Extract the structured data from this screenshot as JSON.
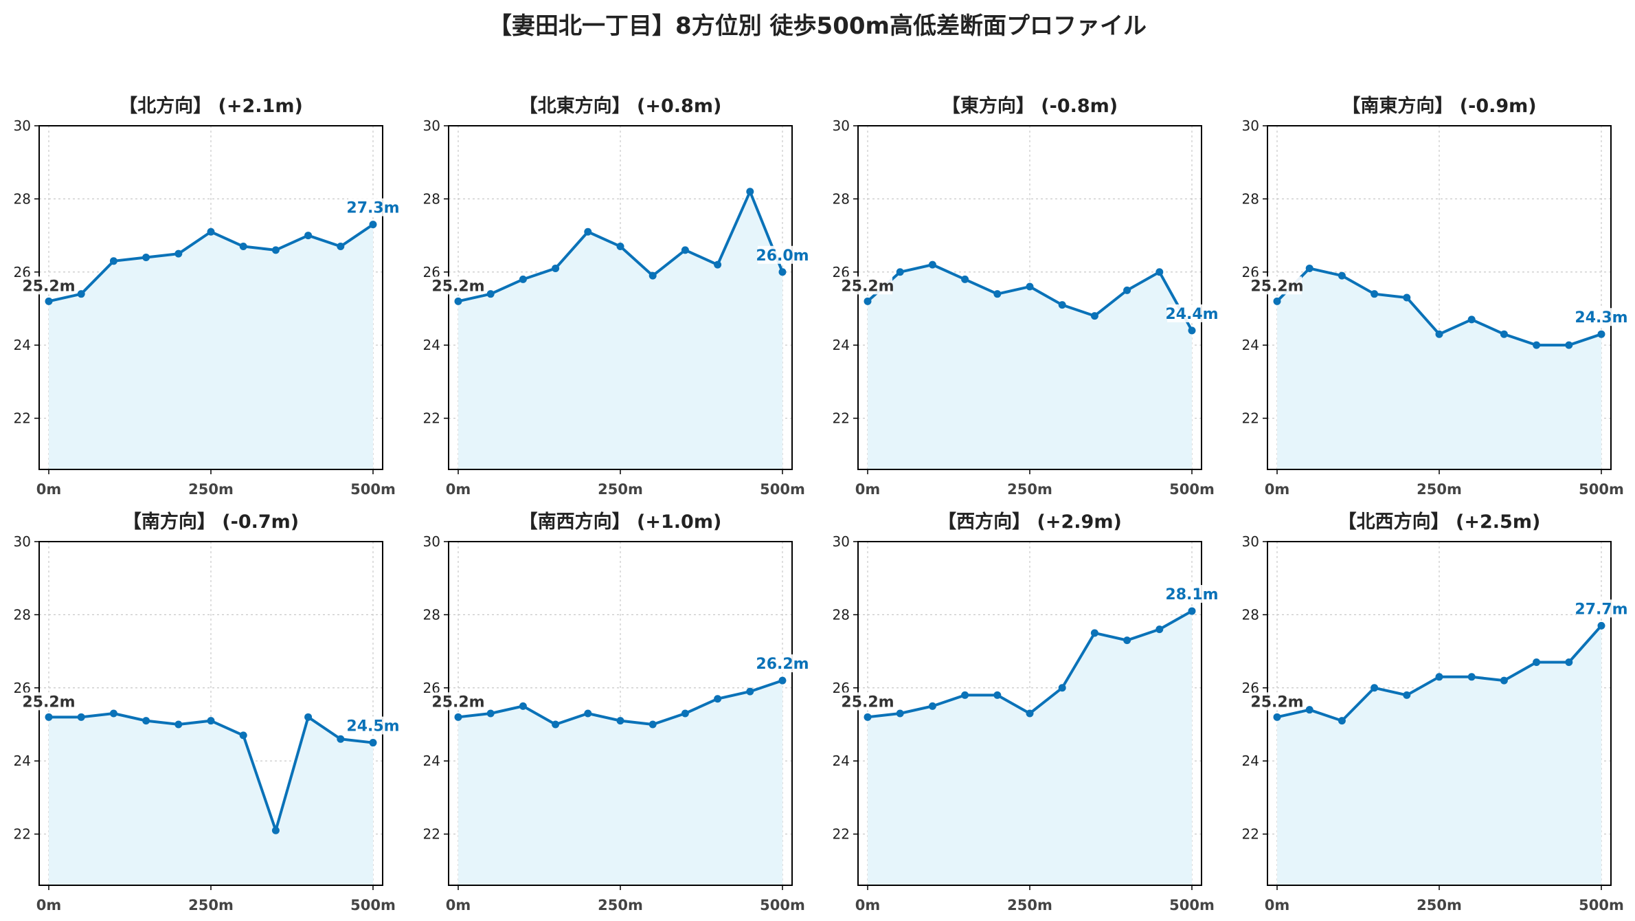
{
  "title": "【妻田北一丁目】8方位別 徒歩500m高低差断面プロファイル",
  "colors": {
    "line": "#0a72b8",
    "fill": "#e6f5fb",
    "start_label": "#333333",
    "end_label": "#0a72b8",
    "grid": "#c8c8c8"
  },
  "chart_data": [
    {
      "type": "area",
      "title": "【北方向】 (+2.1m)",
      "x": [
        0,
        50,
        100,
        150,
        200,
        250,
        300,
        350,
        400,
        450,
        500
      ],
      "y": [
        25.2,
        25.4,
        26.3,
        26.4,
        26.5,
        27.1,
        26.7,
        26.6,
        27.0,
        26.7,
        27.3
      ],
      "xticks": [
        "0m",
        "250m",
        "500m"
      ],
      "yticks": [
        "22",
        "24",
        "26",
        "28",
        "30"
      ],
      "ylim": [
        20.6,
        30
      ],
      "start_label": "25.2m",
      "end_label": "27.3m",
      "grid": true
    },
    {
      "type": "area",
      "title": "【北東方向】 (+0.8m)",
      "x": [
        0,
        50,
        100,
        150,
        200,
        250,
        300,
        350,
        400,
        450,
        500
      ],
      "y": [
        25.2,
        25.4,
        25.8,
        26.1,
        27.1,
        26.7,
        25.9,
        26.6,
        26.2,
        28.2,
        26.0
      ],
      "xticks": [
        "0m",
        "250m",
        "500m"
      ],
      "yticks": [
        "22",
        "24",
        "26",
        "28",
        "30"
      ],
      "ylim": [
        20.6,
        30
      ],
      "start_label": "25.2m",
      "end_label": "26.0m",
      "grid": true
    },
    {
      "type": "area",
      "title": "【東方向】 (-0.8m)",
      "x": [
        0,
        50,
        100,
        150,
        200,
        250,
        300,
        350,
        400,
        450,
        500
      ],
      "y": [
        25.2,
        26.0,
        26.2,
        25.8,
        25.4,
        25.6,
        25.1,
        24.8,
        25.5,
        26.0,
        24.4
      ],
      "xticks": [
        "0m",
        "250m",
        "500m"
      ],
      "yticks": [
        "22",
        "24",
        "26",
        "28",
        "30"
      ],
      "ylim": [
        20.6,
        30
      ],
      "start_label": "25.2m",
      "end_label": "24.4m",
      "grid": true
    },
    {
      "type": "area",
      "title": "【南東方向】 (-0.9m)",
      "x": [
        0,
        50,
        100,
        150,
        200,
        250,
        300,
        350,
        400,
        450,
        500
      ],
      "y": [
        25.2,
        26.1,
        25.9,
        25.4,
        25.3,
        24.3,
        24.7,
        24.3,
        24.0,
        24.0,
        24.3
      ],
      "xticks": [
        "0m",
        "250m",
        "500m"
      ],
      "yticks": [
        "22",
        "24",
        "26",
        "28",
        "30"
      ],
      "ylim": [
        20.6,
        30
      ],
      "start_label": "25.2m",
      "end_label": "24.3m",
      "grid": true
    },
    {
      "type": "area",
      "title": "【南方向】 (-0.7m)",
      "x": [
        0,
        50,
        100,
        150,
        200,
        250,
        300,
        350,
        400,
        450,
        500
      ],
      "y": [
        25.2,
        25.2,
        25.3,
        25.1,
        25.0,
        25.1,
        24.7,
        22.1,
        25.2,
        24.6,
        24.5
      ],
      "xticks": [
        "0m",
        "250m",
        "500m"
      ],
      "yticks": [
        "22",
        "24",
        "26",
        "28",
        "30"
      ],
      "ylim": [
        20.6,
        30
      ],
      "start_label": "25.2m",
      "end_label": "24.5m",
      "grid": true
    },
    {
      "type": "area",
      "title": "【南西方向】 (+1.0m)",
      "x": [
        0,
        50,
        100,
        150,
        200,
        250,
        300,
        350,
        400,
        450,
        500
      ],
      "y": [
        25.2,
        25.3,
        25.5,
        25.0,
        25.3,
        25.1,
        25.0,
        25.3,
        25.7,
        25.9,
        26.2
      ],
      "xticks": [
        "0m",
        "250m",
        "500m"
      ],
      "yticks": [
        "22",
        "24",
        "26",
        "28",
        "30"
      ],
      "ylim": [
        20.6,
        30
      ],
      "start_label": "25.2m",
      "end_label": "26.2m",
      "grid": true
    },
    {
      "type": "area",
      "title": "【西方向】 (+2.9m)",
      "x": [
        0,
        50,
        100,
        150,
        200,
        250,
        300,
        350,
        400,
        450,
        500
      ],
      "y": [
        25.2,
        25.3,
        25.5,
        25.8,
        25.8,
        25.3,
        26.0,
        27.5,
        27.3,
        27.6,
        28.1
      ],
      "xticks": [
        "0m",
        "250m",
        "500m"
      ],
      "yticks": [
        "22",
        "24",
        "26",
        "28",
        "30"
      ],
      "ylim": [
        20.6,
        30
      ],
      "start_label": "25.2m",
      "end_label": "28.1m",
      "grid": true
    },
    {
      "type": "area",
      "title": "【北西方向】 (+2.5m)",
      "x": [
        0,
        50,
        100,
        150,
        200,
        250,
        300,
        350,
        400,
        450,
        500
      ],
      "y": [
        25.2,
        25.4,
        25.1,
        26.0,
        25.8,
        26.3,
        26.3,
        26.2,
        26.7,
        26.7,
        27.7
      ],
      "xticks": [
        "0m",
        "250m",
        "500m"
      ],
      "yticks": [
        "22",
        "24",
        "26",
        "28",
        "30"
      ],
      "ylim": [
        20.6,
        30
      ],
      "start_label": "25.2m",
      "end_label": "27.7m",
      "grid": true
    }
  ]
}
